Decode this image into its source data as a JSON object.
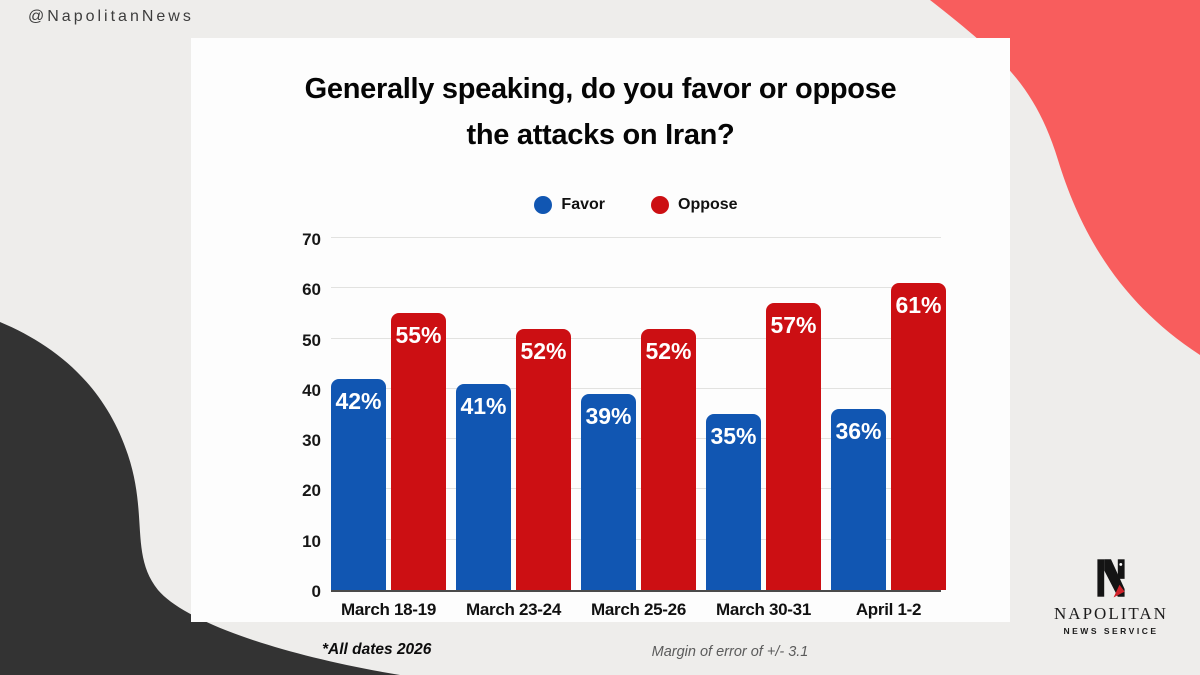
{
  "handle": "@NapolitanNews",
  "title": {
    "line1": "Generally speaking, do you favor or oppose",
    "line2": "the attacks on Iran?"
  },
  "legend": [
    {
      "label": "Favor",
      "color": "#1156b2"
    },
    {
      "label": "Oppose",
      "color": "#cc0f13"
    }
  ],
  "chart_data": {
    "type": "bar",
    "categories": [
      "March 18-19",
      "March 23-24",
      "March 25-26",
      "March 30-31",
      "April 1-2"
    ],
    "series": [
      {
        "name": "Favor",
        "color": "#1156b2",
        "values": [
          42,
          41,
          39,
          35,
          36
        ]
      },
      {
        "name": "Oppose",
        "color": "#cc0f13",
        "values": [
          55,
          52,
          52,
          57,
          61
        ]
      }
    ],
    "value_suffix": "%",
    "title": "Generally speaking, do you favor or oppose the attacks on Iran?",
    "xlabel": "",
    "ylabel": "",
    "ylim": [
      0,
      70
    ],
    "yticks": [
      0,
      10,
      20,
      30,
      40,
      50,
      60,
      70
    ],
    "grid": true,
    "legend_position": "top"
  },
  "footnotes": {
    "dates": "*All dates 2026",
    "margin": "Margin of error of +/- 3.1"
  },
  "logo": {
    "name": "NAPOLITAN",
    "subtitle": "NEWS SERVICE"
  },
  "colors": {
    "background": "#eeedeb",
    "card": "#fdfdfd",
    "coral_blob": "#f85d5d",
    "dark_blob": "#333333",
    "favor_bar": "#1156b2",
    "oppose_bar": "#cc0f13",
    "gridline": "#e2e2e0",
    "logo_red": "#d0222a"
  }
}
